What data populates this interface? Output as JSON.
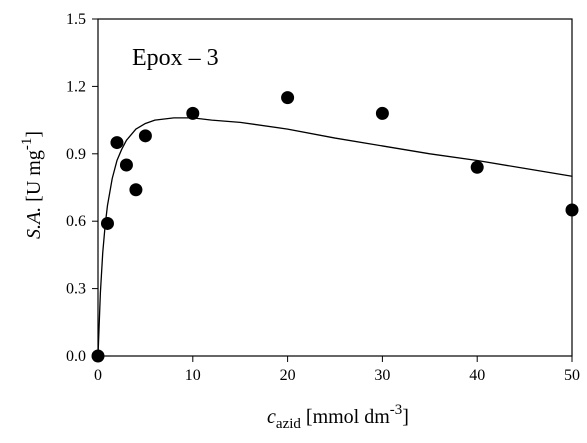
{
  "chart_data": {
    "type": "scatter",
    "title": "",
    "annotation": "Epox – 3",
    "xlabel": {
      "prefix": "",
      "symbol": "c",
      "subscript": "azid",
      "unit_prefix": " [mmol dm",
      "unit_superscript": "-3",
      "unit_suffix": "]"
    },
    "ylabel": {
      "symbol": "S.A.",
      "unit_prefix": " [U mg",
      "unit_superscript": "-1",
      "unit_suffix": "]"
    },
    "xlim": [
      0,
      50
    ],
    "ylim": [
      0.0,
      1.5
    ],
    "xticks": [
      {
        "value": 0,
        "label": "0"
      },
      {
        "value": 10,
        "label": "10"
      },
      {
        "value": 20,
        "label": "20"
      },
      {
        "value": 30,
        "label": "30"
      },
      {
        "value": 40,
        "label": "40"
      },
      {
        "value": 50,
        "label": "50"
      }
    ],
    "yticks": [
      {
        "value": 0.0,
        "label": "0.0"
      },
      {
        "value": 0.3,
        "label": "0.3"
      },
      {
        "value": 0.6,
        "label": "0.6"
      },
      {
        "value": 0.9,
        "label": "0.9"
      },
      {
        "value": 1.2,
        "label": "1.2"
      },
      {
        "value": 1.5,
        "label": "1.5"
      }
    ],
    "grid": false,
    "points": [
      {
        "x": 0,
        "y": 0.0
      },
      {
        "x": 1,
        "y": 0.59
      },
      {
        "x": 2,
        "y": 0.95
      },
      {
        "x": 3,
        "y": 0.85
      },
      {
        "x": 4,
        "y": 0.74
      },
      {
        "x": 5,
        "y": 0.98
      },
      {
        "x": 10,
        "y": 1.08
      },
      {
        "x": 20,
        "y": 1.15
      },
      {
        "x": 30,
        "y": 1.08
      },
      {
        "x": 40,
        "y": 0.84
      },
      {
        "x": 50,
        "y": 0.65
      }
    ],
    "fit_curve": [
      {
        "x": 0,
        "y": 0.0
      },
      {
        "x": 0.25,
        "y": 0.28
      },
      {
        "x": 0.5,
        "y": 0.46
      },
      {
        "x": 0.75,
        "y": 0.58
      },
      {
        "x": 1,
        "y": 0.67
      },
      {
        "x": 1.5,
        "y": 0.79
      },
      {
        "x": 2,
        "y": 0.87
      },
      {
        "x": 2.5,
        "y": 0.92
      },
      {
        "x": 3,
        "y": 0.96
      },
      {
        "x": 4,
        "y": 1.01
      },
      {
        "x": 5,
        "y": 1.035
      },
      {
        "x": 6,
        "y": 1.05
      },
      {
        "x": 7,
        "y": 1.055
      },
      {
        "x": 8,
        "y": 1.06
      },
      {
        "x": 10,
        "y": 1.06
      },
      {
        "x": 12,
        "y": 1.05
      },
      {
        "x": 15,
        "y": 1.04
      },
      {
        "x": 20,
        "y": 1.01
      },
      {
        "x": 25,
        "y": 0.97
      },
      {
        "x": 30,
        "y": 0.935
      },
      {
        "x": 35,
        "y": 0.9
      },
      {
        "x": 40,
        "y": 0.87
      },
      {
        "x": 45,
        "y": 0.835
      },
      {
        "x": 50,
        "y": 0.8
      }
    ]
  }
}
